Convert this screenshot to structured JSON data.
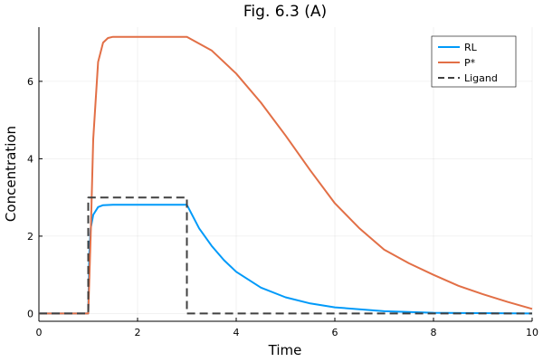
{
  "chart_data": {
    "type": "line",
    "title": "Fig. 6.3 (A)",
    "xlabel": "Time",
    "ylabel": "Concentration",
    "xlim": [
      0,
      10
    ],
    "ylim": [
      -0.2,
      7.4
    ],
    "xticks": [
      0,
      2,
      4,
      6,
      8,
      10
    ],
    "yticks": [
      0,
      2,
      4,
      6
    ],
    "grid": true,
    "legend_position": "top-right",
    "series": [
      {
        "name": "RL",
        "color": "#009af9",
        "dash": false,
        "x": [
          0,
          1,
          1.02,
          1.05,
          1.1,
          1.2,
          1.3,
          1.5,
          3,
          3.25,
          3.5,
          3.75,
          4,
          4.5,
          5,
          5.5,
          6,
          7,
          8,
          9,
          10
        ],
        "y": [
          0,
          0,
          1.5,
          2.2,
          2.55,
          2.75,
          2.8,
          2.81,
          2.81,
          2.2,
          1.75,
          1.38,
          1.08,
          0.67,
          0.42,
          0.26,
          0.16,
          0.06,
          0.02,
          0.01,
          0.0
        ]
      },
      {
        "name": "P*",
        "color": "#e26f46",
        "dash": false,
        "x": [
          0,
          1,
          1.05,
          1.1,
          1.2,
          1.3,
          1.4,
          1.5,
          3,
          3.5,
          4,
          4.5,
          5,
          5.5,
          6,
          6.5,
          7,
          7.5,
          8,
          8.5,
          9,
          9.5,
          10
        ],
        "y": [
          0,
          0,
          2.0,
          4.5,
          6.5,
          7.0,
          7.12,
          7.15,
          7.15,
          6.8,
          6.2,
          5.45,
          4.6,
          3.7,
          2.85,
          2.2,
          1.65,
          1.3,
          1.0,
          0.72,
          0.5,
          0.3,
          0.12
        ]
      },
      {
        "name": "Ligand",
        "color": "#404040",
        "dash": true,
        "x": [
          0,
          1,
          1,
          3,
          3,
          10
        ],
        "y": [
          0,
          0,
          3,
          3,
          0,
          0
        ]
      }
    ]
  }
}
